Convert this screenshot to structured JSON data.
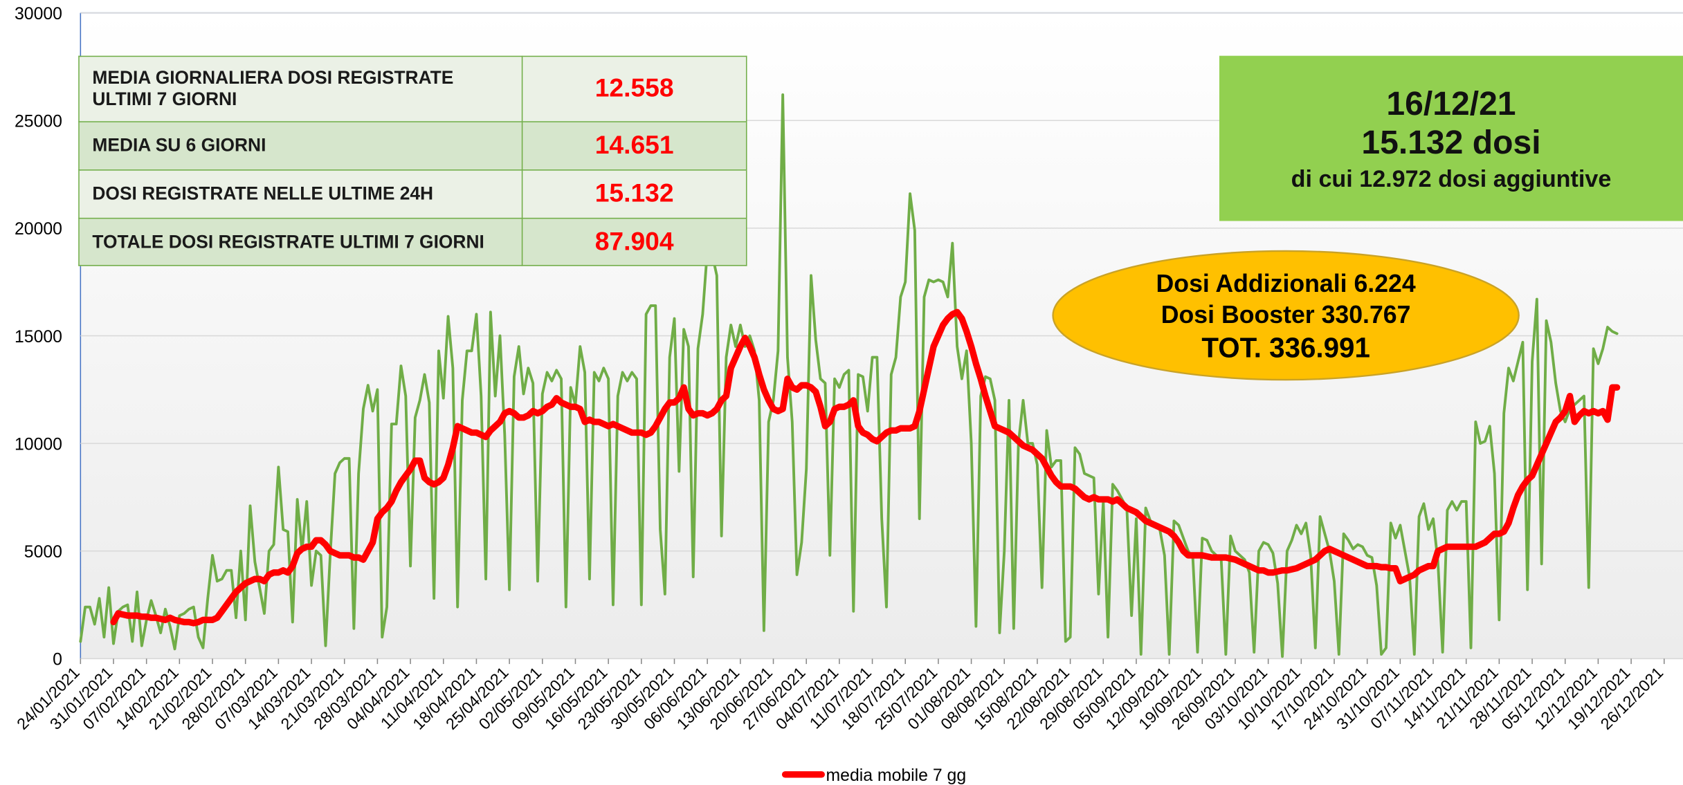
{
  "chart_data": {
    "type": "line",
    "x": [
      "24/01/2021",
      "25/01/2021",
      "26/01/2021",
      "27/01/2021",
      "28/01/2021",
      "29/01/2021",
      "30/01/2021",
      "31/01/2021",
      "01/02/2021",
      "02/02/2021",
      "03/02/2021",
      "04/02/2021",
      "05/02/2021",
      "06/02/2021",
      "07/02/2021",
      "08/02/2021",
      "09/02/2021",
      "10/02/2021",
      "11/02/2021",
      "12/02/2021",
      "13/02/2021",
      "14/02/2021",
      "15/02/2021",
      "16/02/2021",
      "17/02/2021",
      "18/02/2021",
      "19/02/2021",
      "20/02/2021",
      "21/02/2021",
      "22/02/2021",
      "23/02/2021",
      "24/02/2021",
      "25/02/2021",
      "26/02/2021",
      "27/02/2021",
      "28/02/2021",
      "01/03/2021",
      "02/03/2021",
      "03/03/2021",
      "04/03/2021",
      "05/03/2021",
      "06/03/2021",
      "07/03/2021",
      "08/03/2021",
      "09/03/2021",
      "10/03/2021",
      "11/03/2021",
      "12/03/2021",
      "13/03/2021",
      "14/03/2021",
      "15/03/2021",
      "16/03/2021",
      "17/03/2021",
      "18/03/2021",
      "19/03/2021",
      "20/03/2021",
      "21/03/2021",
      "22/03/2021",
      "23/03/2021",
      "24/03/2021",
      "25/03/2021",
      "26/03/2021",
      "27/03/2021",
      "28/03/2021",
      "29/03/2021",
      "30/03/2021",
      "31/03/2021",
      "01/04/2021",
      "02/04/2021",
      "03/04/2021",
      "04/04/2021",
      "05/04/2021",
      "06/04/2021",
      "07/04/2021",
      "08/04/2021",
      "09/04/2021",
      "10/04/2021",
      "11/04/2021",
      "12/04/2021",
      "13/04/2021",
      "14/04/2021",
      "15/04/2021",
      "16/04/2021",
      "17/04/2021",
      "18/04/2021",
      "19/04/2021",
      "20/04/2021",
      "21/04/2021",
      "22/04/2021",
      "23/04/2021",
      "24/04/2021",
      "25/04/2021",
      "26/04/2021",
      "27/04/2021",
      "28/04/2021",
      "29/04/2021",
      "30/04/2021",
      "01/05/2021",
      "02/05/2021",
      "03/05/2021",
      "04/05/2021",
      "05/05/2021",
      "06/05/2021",
      "07/05/2021",
      "08/05/2021",
      "09/05/2021",
      "10/05/2021",
      "11/05/2021",
      "12/05/2021",
      "13/05/2021",
      "14/05/2021",
      "15/05/2021",
      "16/05/2021",
      "17/05/2021",
      "18/05/2021",
      "19/05/2021",
      "20/05/2021",
      "21/05/2021",
      "22/05/2021",
      "23/05/2021",
      "24/05/2021",
      "25/05/2021",
      "26/05/2021",
      "27/05/2021",
      "28/05/2021",
      "29/05/2021",
      "30/05/2021",
      "31/05/2021",
      "01/06/2021",
      "02/06/2021",
      "03/06/2021",
      "04/06/2021",
      "05/06/2021",
      "06/06/2021",
      "07/06/2021",
      "08/06/2021",
      "09/06/2021",
      "10/06/2021",
      "11/06/2021",
      "12/06/2021",
      "13/06/2021",
      "14/06/2021",
      "15/06/2021",
      "16/06/2021",
      "17/06/2021",
      "18/06/2021",
      "19/06/2021",
      "20/06/2021",
      "21/06/2021",
      "22/06/2021",
      "23/06/2021",
      "24/06/2021",
      "25/06/2021",
      "26/06/2021",
      "27/06/2021",
      "28/06/2021",
      "29/06/2021",
      "30/06/2021",
      "01/07/2021",
      "02/07/2021",
      "03/07/2021",
      "04/07/2021",
      "05/07/2021",
      "06/07/2021",
      "07/07/2021",
      "08/07/2021",
      "09/07/2021",
      "10/07/2021",
      "11/07/2021",
      "12/07/2021",
      "13/07/2021",
      "14/07/2021",
      "15/07/2021",
      "16/07/2021",
      "17/07/2021",
      "18/07/2021",
      "19/07/2021",
      "20/07/2021",
      "21/07/2021",
      "22/07/2021",
      "23/07/2021",
      "24/07/2021",
      "25/07/2021",
      "26/07/2021",
      "27/07/2021",
      "28/07/2021",
      "29/07/2021",
      "30/07/2021",
      "31/07/2021",
      "01/08/2021",
      "02/08/2021",
      "03/08/2021",
      "04/08/2021",
      "05/08/2021",
      "06/08/2021",
      "07/08/2021",
      "08/08/2021",
      "09/08/2021",
      "10/08/2021",
      "11/08/2021",
      "12/08/2021",
      "13/08/2021",
      "14/08/2021",
      "15/08/2021",
      "16/08/2021",
      "17/08/2021",
      "18/08/2021",
      "19/08/2021",
      "20/08/2021",
      "21/08/2021",
      "22/08/2021",
      "23/08/2021",
      "24/08/2021",
      "25/08/2021",
      "26/08/2021",
      "27/08/2021",
      "28/08/2021",
      "29/08/2021",
      "30/08/2021",
      "31/08/2021",
      "01/09/2021",
      "02/09/2021",
      "03/09/2021",
      "04/09/2021",
      "05/09/2021",
      "06/09/2021",
      "07/09/2021",
      "08/09/2021",
      "09/09/2021",
      "10/09/2021",
      "11/09/2021",
      "12/09/2021",
      "13/09/2021",
      "14/09/2021",
      "15/09/2021",
      "16/09/2021",
      "17/09/2021",
      "18/09/2021",
      "19/09/2021",
      "20/09/2021",
      "21/09/2021",
      "22/09/2021",
      "23/09/2021",
      "24/09/2021",
      "25/09/2021",
      "26/09/2021",
      "27/09/2021",
      "28/09/2021",
      "29/09/2021",
      "30/09/2021",
      "01/10/2021",
      "02/10/2021",
      "03/10/2021",
      "04/10/2021",
      "05/10/2021",
      "06/10/2021",
      "07/10/2021",
      "08/10/2021",
      "09/10/2021",
      "10/10/2021",
      "11/10/2021",
      "12/10/2021",
      "13/10/2021",
      "14/10/2021",
      "15/10/2021",
      "16/10/2021",
      "17/10/2021",
      "18/10/2021",
      "19/10/2021",
      "20/10/2021",
      "21/10/2021",
      "22/10/2021",
      "23/10/2021",
      "24/10/2021",
      "25/10/2021",
      "26/10/2021",
      "27/10/2021",
      "28/10/2021",
      "29/10/2021",
      "30/10/2021",
      "31/10/2021",
      "01/11/2021",
      "02/11/2021",
      "03/11/2021",
      "04/11/2021",
      "05/11/2021",
      "06/11/2021",
      "07/11/2021",
      "08/11/2021",
      "09/11/2021",
      "10/11/2021",
      "11/11/2021",
      "12/11/2021",
      "13/11/2021",
      "14/11/2021",
      "15/11/2021",
      "16/11/2021",
      "17/11/2021",
      "18/11/2021",
      "19/11/2021",
      "20/11/2021",
      "21/11/2021",
      "22/11/2021",
      "23/11/2021",
      "24/11/2021",
      "25/11/2021",
      "26/11/2021",
      "27/11/2021",
      "28/11/2021",
      "29/11/2021",
      "30/11/2021",
      "01/12/2021",
      "02/12/2021",
      "03/12/2021",
      "04/12/2021",
      "05/12/2021",
      "06/12/2021",
      "07/12/2021",
      "08/12/2021",
      "09/12/2021",
      "10/12/2021",
      "11/12/2021",
      "12/12/2021",
      "13/12/2021",
      "14/12/2021",
      "15/12/2021",
      "16/12/2021"
    ],
    "series": [
      {
        "color": "#70ad47",
        "values": [
          800,
          2400,
          2400,
          1600,
          2800,
          1000,
          3300,
          700,
          2200,
          2400,
          2500,
          800,
          3100,
          600,
          1800,
          2700,
          2000,
          1200,
          2300,
          1500,
          450,
          2000,
          2100,
          2300,
          2400,
          1000,
          500,
          2800,
          4800,
          3600,
          3700,
          4100,
          4100,
          1900,
          5000,
          1800,
          7100,
          4500,
          3300,
          2100,
          5000,
          5300,
          8900,
          6000,
          5900,
          1700,
          7400,
          5000,
          7300,
          3400,
          5000,
          4800,
          600,
          4900,
          8600,
          9100,
          9300,
          9300,
          1400,
          8600,
          11600,
          12700,
          11500,
          12500,
          1000,
          2400,
          10900,
          10900,
          13600,
          12200,
          4300,
          11200,
          12000,
          13200,
          11900,
          2800,
          14300,
          12100,
          15900,
          13500,
          2400,
          12000,
          14300,
          14300,
          16000,
          12200,
          3700,
          16100,
          12200,
          15000,
          10400,
          3200,
          13100,
          14500,
          12300,
          13500,
          12800,
          3600,
          12300,
          13300,
          12900,
          13400,
          13000,
          2400,
          12600,
          11800,
          14500,
          13300,
          3700,
          13300,
          12900,
          13500,
          13000,
          2500,
          12200,
          13300,
          12900,
          13300,
          13000,
          2500,
          16000,
          16400,
          16400,
          6000,
          3000,
          14000,
          15800,
          8700,
          15300,
          14500,
          3800,
          14400,
          16000,
          19000,
          18800,
          17800,
          5700,
          14000,
          15500,
          14500,
          15500,
          14500,
          15000,
          14300,
          12000,
          1300,
          11000,
          12000,
          14300,
          26200,
          14000,
          11000,
          3900,
          5400,
          8800,
          17800,
          14800,
          13000,
          12800,
          4800,
          13000,
          12600,
          13200,
          13400,
          2200,
          13200,
          13100,
          11500,
          14000,
          14000,
          6500,
          2400,
          13200,
          14000,
          16800,
          17500,
          21600,
          19900,
          6500,
          16800,
          17600,
          17500,
          17600,
          17500,
          16800,
          19300,
          14500,
          13000,
          14300,
          10000,
          1500,
          12200,
          13100,
          13000,
          12000,
          1200,
          5000,
          12000,
          1400,
          10000,
          12000,
          10000,
          10000,
          9000,
          3300,
          10600,
          8900,
          9200,
          9200,
          800,
          1000,
          9800,
          9500,
          8600,
          8500,
          8400,
          3000,
          7300,
          1000,
          8100,
          7800,
          7400,
          7000,
          2000,
          6500,
          200,
          7000,
          6400,
          6200,
          6000,
          4800,
          200,
          6400,
          6200,
          5600,
          5000,
          4700,
          300,
          5600,
          5500,
          5000,
          4800,
          4700,
          200,
          5700,
          5000,
          4800,
          4600,
          4000,
          300,
          5000,
          5400,
          5300,
          4900,
          3500,
          100,
          5000,
          5500,
          6200,
          5800,
          6300,
          4800,
          500,
          6600,
          5800,
          5000,
          3600,
          200,
          5800,
          5500,
          5100,
          5300,
          5200,
          4800,
          4700,
          3400,
          200,
          500,
          6300,
          5600,
          6200,
          5000,
          3800,
          200,
          6600,
          7200,
          6000,
          6500,
          4500,
          300,
          6900,
          7300,
          6900,
          7300,
          7300,
          500,
          11000,
          10000,
          10100,
          10800,
          8600,
          1800,
          11400,
          13500,
          12900,
          13800,
          14700,
          3200,
          13800,
          16700,
          4400,
          15700,
          14700,
          12800,
          11500,
          11000,
          11600,
          11800,
          12000,
          12200,
          3300,
          14400,
          13700,
          14400,
          15400,
          15200,
          15100
        ]
      },
      {
        "name": "media mobile 7 gg",
        "color": "#ff0000",
        "values": [
          null,
          null,
          null,
          null,
          null,
          null,
          null,
          1700,
          2100,
          2050,
          2000,
          2000,
          2000,
          1950,
          1950,
          1900,
          1900,
          1850,
          1800,
          1900,
          1800,
          1750,
          1700,
          1700,
          1650,
          1700,
          1800,
          1800,
          1800,
          1900,
          2200,
          2500,
          2800,
          3100,
          3300,
          3500,
          3600,
          3700,
          3700,
          3600,
          3900,
          4000,
          4000,
          4100,
          4000,
          4300,
          4900,
          5100,
          5200,
          5200,
          5500,
          5500,
          5300,
          5000,
          4900,
          4800,
          4800,
          4800,
          4700,
          4700,
          4600,
          5000,
          5400,
          6500,
          6800,
          7000,
          7300,
          7800,
          8200,
          8500,
          8800,
          9200,
          9200,
          8400,
          8200,
          8100,
          8200,
          8400,
          9000,
          9800,
          10800,
          10700,
          10600,
          10500,
          10500,
          10400,
          10300,
          10600,
          10800,
          11000,
          11400,
          11500,
          11400,
          11200,
          11200,
          11300,
          11500,
          11400,
          11500,
          11700,
          11800,
          12100,
          11900,
          11800,
          11700,
          11700,
          11600,
          11000,
          11100,
          11000,
          11000,
          10900,
          10800,
          10900,
          10800,
          10700,
          10600,
          10500,
          10500,
          10500,
          10400,
          10500,
          10800,
          11200,
          11600,
          11900,
          11900,
          12100,
          12600,
          11600,
          11300,
          11400,
          11400,
          11300,
          11400,
          11600,
          12000,
          12200,
          13500,
          14000,
          14500,
          14900,
          14500,
          14000,
          13200,
          12500,
          12000,
          11600,
          11500,
          11600,
          13000,
          12600,
          12500,
          12700,
          12700,
          12600,
          12400,
          11700,
          10800,
          11000,
          11600,
          11700,
          11700,
          11800,
          12000,
          10800,
          10500,
          10400,
          10200,
          10100,
          10300,
          10500,
          10600,
          10600,
          10700,
          10700,
          10700,
          10800,
          11500,
          12500,
          13500,
          14500,
          15000,
          15500,
          15800,
          16000,
          16100,
          15800,
          15200,
          14500,
          13700,
          13000,
          12200,
          11500,
          10800,
          10700,
          10600,
          10500,
          10300,
          10100,
          9900,
          9800,
          9700,
          9500,
          9300,
          8900,
          8500,
          8200,
          8000,
          8000,
          8000,
          7900,
          7700,
          7500,
          7400,
          7500,
          7400,
          7400,
          7400,
          7300,
          7400,
          7200,
          7000,
          6900,
          6800,
          6600,
          6400,
          6300,
          6200,
          6100,
          6000,
          5900,
          5700,
          5400,
          5000,
          4800,
          4800,
          4800,
          4800,
          4750,
          4700,
          4700,
          4700,
          4700,
          4650,
          4600,
          4500,
          4400,
          4300,
          4200,
          4100,
          4100,
          4000,
          4000,
          4050,
          4100,
          4100,
          4150,
          4200,
          4300,
          4400,
          4500,
          4600,
          4800,
          5000,
          5100,
          5000,
          4900,
          4800,
          4700,
          4600,
          4500,
          4400,
          4300,
          4300,
          4300,
          4250,
          4250,
          4200,
          4200,
          3600,
          3700,
          3800,
          3900,
          4100,
          4200,
          4300,
          4300,
          5000,
          5100,
          5200,
          5200,
          5200,
          5200,
          5200,
          5200,
          5200,
          5300,
          5400,
          5600,
          5800,
          5800,
          5900,
          6300,
          7000,
          7600,
          8000,
          8300,
          8500,
          9000,
          9500,
          10000,
          10500,
          11000,
          11200,
          11500,
          12200,
          11000,
          11300,
          11500,
          11400,
          11500,
          11400,
          11500,
          11100,
          12600,
          12600
        ]
      }
    ],
    "xlim": [
      "24/01/2021",
      "30/12/2021"
    ],
    "xticks": [
      "24/01/2021",
      "31/01/2021",
      "07/02/2021",
      "14/02/2021",
      "21/02/2021",
      "28/02/2021",
      "07/03/2021",
      "14/03/2021",
      "21/03/2021",
      "28/03/2021",
      "04/04/2021",
      "11/04/2021",
      "18/04/2021",
      "25/04/2021",
      "02/05/2021",
      "09/05/2021",
      "16/05/2021",
      "23/05/2021",
      "30/05/2021",
      "06/06/2021",
      "13/06/2021",
      "20/06/2021",
      "27/06/2021",
      "04/07/2021",
      "11/07/2021",
      "18/07/2021",
      "25/07/2021",
      "01/08/2021",
      "08/08/2021",
      "15/08/2021",
      "22/08/2021",
      "29/08/2021",
      "05/09/2021",
      "12/09/2021",
      "19/09/2021",
      "26/09/2021",
      "03/10/2021",
      "10/10/2021",
      "17/10/2021",
      "24/10/2021",
      "31/10/2021",
      "07/11/2021",
      "14/11/2021",
      "21/11/2021",
      "28/11/2021",
      "05/12/2021",
      "12/12/2021",
      "19/12/2021",
      "26/12/2021"
    ],
    "ylim": [
      0,
      30000
    ],
    "yticks": [
      0,
      5000,
      10000,
      15000,
      20000,
      25000,
      30000
    ],
    "grid": true,
    "legend": "bottom"
  },
  "table": {
    "rows": [
      [
        "MEDIA GIORNALIERA DOSI REGISTRATE ULTIMI 7 GIORNI",
        "12.558"
      ],
      [
        "MEDIA SU 6 GIORNI",
        "14.651"
      ],
      [
        "DOSI REGISTRATE NELLE ULTIME 24H",
        "15.132"
      ],
      [
        "TOTALE DOSI REGISTRATE ULTIMI 7 GIORNI",
        "87.904"
      ]
    ]
  },
  "highlight_box": {
    "lines": [
      "16/12/21",
      "15.132 dosi",
      "di cui 12.972 dosi aggiuntive"
    ]
  },
  "ellipse_note": {
    "lines": [
      "Dosi Addizionali 6.224",
      "Dosi Booster 330.767",
      "TOT. 336.991"
    ]
  }
}
